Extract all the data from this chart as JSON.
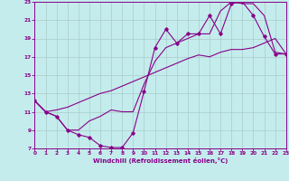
{
  "xlabel": "Windchill (Refroidissement éolien,°C)",
  "bg_color": "#c4ecec",
  "line_color": "#880088",
  "grid_color": "#aacccc",
  "xlim": [
    0,
    23
  ],
  "ylim": [
    7,
    23
  ],
  "xticks": [
    0,
    1,
    2,
    3,
    4,
    5,
    6,
    7,
    8,
    9,
    10,
    11,
    12,
    13,
    14,
    15,
    16,
    17,
    18,
    19,
    20,
    21,
    22,
    23
  ],
  "yticks": [
    7,
    9,
    11,
    13,
    15,
    17,
    19,
    21,
    23
  ],
  "curve_main_x": [
    0,
    1,
    2,
    3,
    4,
    5,
    6,
    7,
    8,
    9,
    10,
    11,
    12,
    13,
    14,
    15,
    16,
    17,
    18,
    19,
    20,
    21,
    22,
    23
  ],
  "curve_main_y": [
    12.2,
    11.0,
    10.5,
    9.0,
    8.5,
    8.2,
    7.3,
    7.1,
    7.1,
    8.7,
    13.2,
    18.0,
    20.0,
    18.5,
    19.5,
    19.5,
    21.5,
    19.5,
    22.8,
    23.0,
    21.5,
    19.2,
    17.3,
    17.3
  ],
  "curve_diag_x": [
    0,
    1,
    2,
    3,
    4,
    5,
    6,
    7,
    8,
    9,
    10,
    11,
    12,
    13,
    14,
    15,
    16,
    17,
    18,
    19,
    20,
    21,
    22,
    23
  ],
  "curve_diag_y": [
    12.2,
    11.0,
    11.2,
    11.5,
    12.0,
    12.5,
    13.0,
    13.3,
    13.8,
    14.3,
    14.8,
    15.3,
    15.8,
    16.3,
    16.8,
    17.2,
    17.0,
    17.5,
    17.8,
    17.8,
    18.0,
    18.5,
    19.0,
    17.3
  ],
  "curve_mid_x": [
    0,
    1,
    2,
    3,
    4,
    5,
    6,
    7,
    8,
    9,
    10,
    11,
    12,
    13,
    14,
    15,
    16,
    17,
    18,
    19,
    20,
    21,
    22,
    23
  ],
  "curve_mid_y": [
    12.2,
    11.0,
    10.5,
    9.0,
    9.0,
    10.0,
    10.5,
    11.2,
    11.0,
    11.0,
    14.0,
    16.5,
    18.0,
    18.5,
    19.0,
    19.5,
    19.5,
    22.0,
    23.0,
    22.8,
    22.8,
    21.5,
    17.5,
    17.3
  ]
}
